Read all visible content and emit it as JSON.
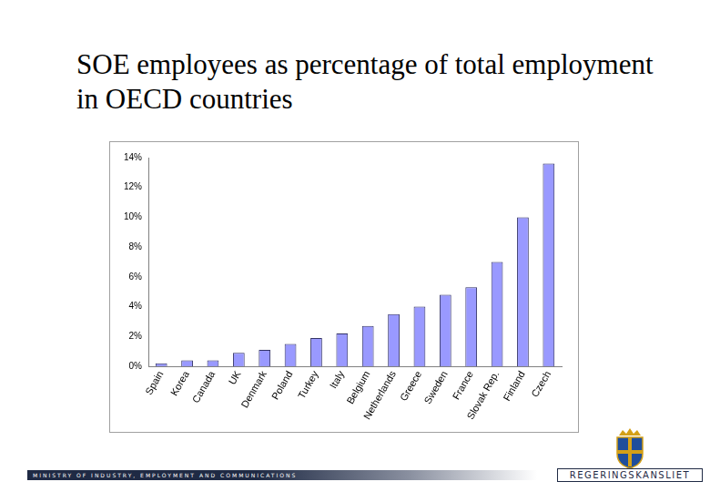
{
  "chart_data": {
    "type": "bar",
    "title": "SOE employees as percentage of total employment in OECD countries",
    "categories": [
      "Spain",
      "Korea",
      "Canada",
      "UK",
      "Denmark",
      "Poland",
      "Turkey",
      "Italy",
      "Belgium",
      "Netherlands",
      "Greece",
      "Sweden",
      "France",
      "Slovak Rep.",
      "Finland",
      "Czech"
    ],
    "values": [
      0.2,
      0.4,
      0.4,
      0.9,
      1.1,
      1.5,
      1.9,
      2.2,
      2.7,
      3.5,
      4.0,
      4.8,
      5.3,
      7.0,
      10.0,
      13.6
    ],
    "color": "#9999ff",
    "ylim": [
      0,
      14
    ],
    "yticks": [
      {
        "value": 0,
        "label": "0%"
      },
      {
        "value": 2,
        "label": "2%"
      },
      {
        "value": 4,
        "label": "4%"
      },
      {
        "value": 6,
        "label": "6%"
      },
      {
        "value": 8,
        "label": "8%"
      },
      {
        "value": 10,
        "label": "10%"
      },
      {
        "value": 12,
        "label": "12%"
      },
      {
        "value": 14,
        "label": "14%"
      }
    ],
    "grid": false
  },
  "footer": {
    "text": "MINISTRY OF INDUSTRY, EMPLOYMENT AND COMMUNICATIONS",
    "logo": "REGERINGSKANSLIET"
  }
}
